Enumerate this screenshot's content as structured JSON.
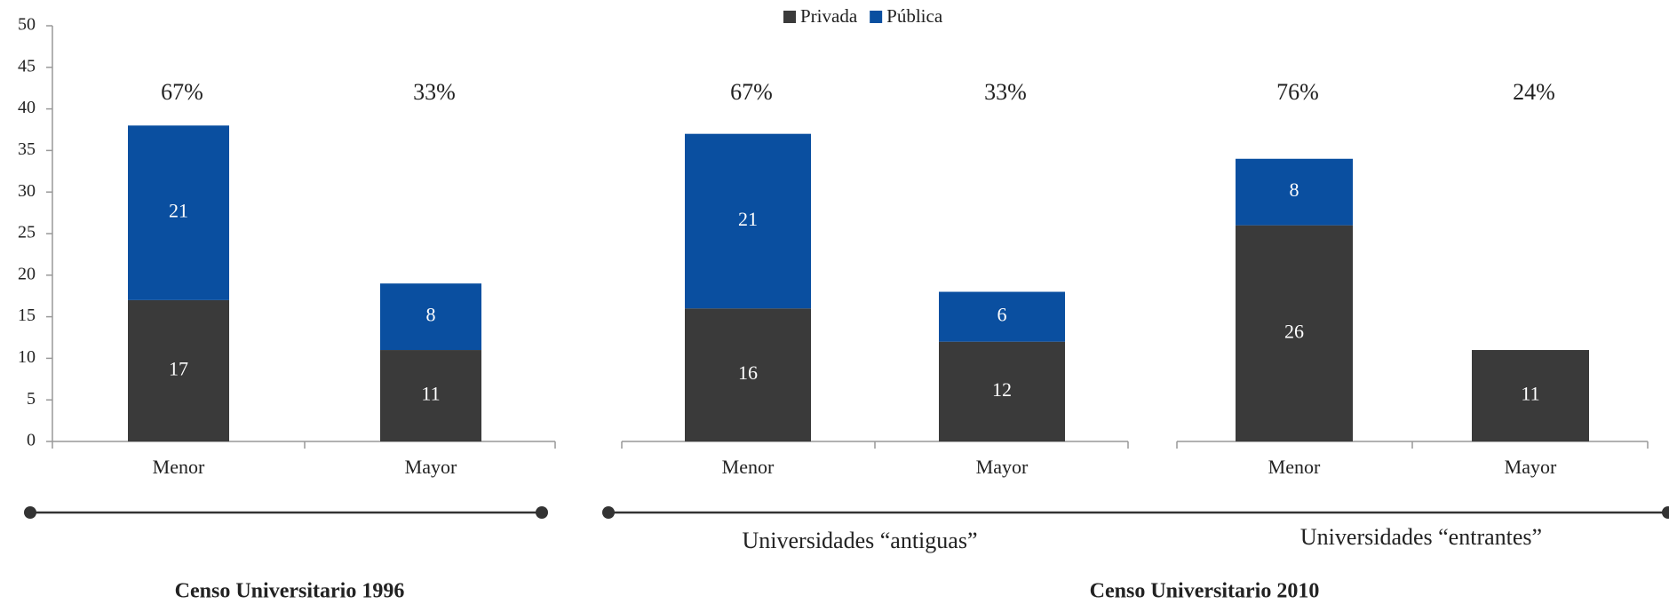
{
  "chart_data": [
    {
      "type": "bar",
      "stacked": true,
      "categories": [
        "Menor",
        "Mayor"
      ],
      "annotations": [
        "67%",
        "33%"
      ],
      "series": [
        {
          "name": "Privada",
          "color": "#3a3a3a",
          "values": [
            17,
            11
          ]
        },
        {
          "name": "Pública",
          "color": "#0a4fa0",
          "values": [
            21,
            8
          ]
        }
      ],
      "ylim": [
        0,
        50
      ],
      "yticks": [
        0,
        5,
        10,
        15,
        20,
        25,
        30,
        35,
        40,
        45,
        50
      ]
    },
    {
      "type": "bar",
      "stacked": true,
      "subtitle": "Universidades “antiguas”",
      "categories": [
        "Menor",
        "Mayor"
      ],
      "annotations": [
        "67%",
        "33%"
      ],
      "series": [
        {
          "name": "Privada",
          "color": "#3a3a3a",
          "values": [
            16,
            12
          ]
        },
        {
          "name": "Pública",
          "color": "#0a4fa0",
          "values": [
            21,
            6
          ]
        }
      ],
      "ylim": [
        0,
        50
      ]
    },
    {
      "type": "bar",
      "stacked": true,
      "subtitle": "Universidades “entrantes”",
      "categories": [
        "Menor",
        "Mayor"
      ],
      "annotations": [
        "76%",
        "24%"
      ],
      "series": [
        {
          "name": "Privada",
          "color": "#3a3a3a",
          "values": [
            26,
            11
          ]
        },
        {
          "name": "Pública",
          "color": "#0a4fa0",
          "values": [
            8,
            null
          ]
        }
      ],
      "ylim": [
        0,
        50
      ]
    }
  ],
  "groups": [
    {
      "label": "Censo Universitario 1996"
    },
    {
      "label": "Censo Universitario 2010"
    }
  ]
}
